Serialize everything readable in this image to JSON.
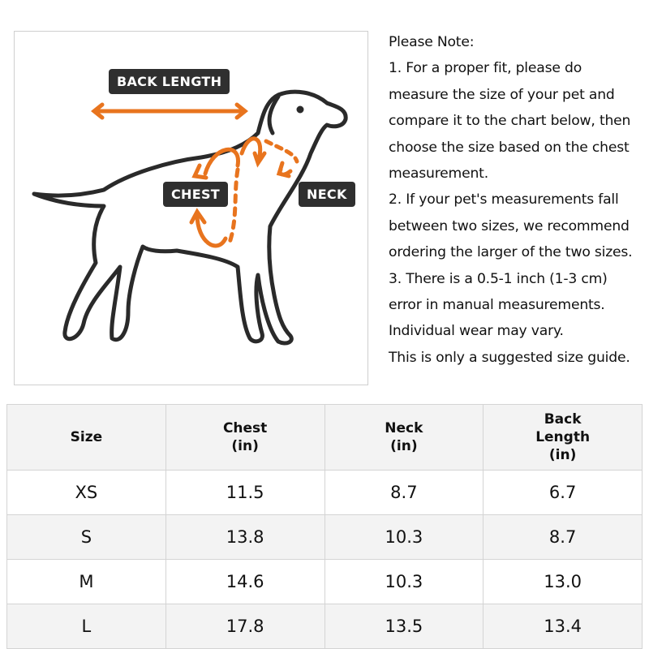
{
  "illustration": {
    "labels": {
      "back_length": "BACK LENGTH",
      "chest": "CHEST",
      "neck": "NECK"
    },
    "colors": {
      "arrow": "#e8741e",
      "tag": "#2f2f2f",
      "outline": "#2a2a2a"
    }
  },
  "notes": {
    "lines": [
      "Please Note:",
      "1. For a proper fit, please do",
      "measure the size of your pet and",
      "compare it to the chart below, then",
      "choose the size based on the chest",
      "measurement.",
      "2. If your pet's measurements fall",
      "between two sizes, we recommend",
      "ordering the larger of the two sizes.",
      "3. There is a 0.5-1 inch (1-3 cm)",
      "error in manual measurements.",
      "Individual wear may vary.",
      "This is only a suggested size guide."
    ]
  },
  "table": {
    "headers": [
      [
        "Size"
      ],
      [
        "Chest",
        "(in)"
      ],
      [
        "Neck",
        "(in)"
      ],
      [
        "Back",
        "Length",
        "(in)"
      ]
    ],
    "rows": [
      [
        "XS",
        "11.5",
        "8.7",
        "6.7"
      ],
      [
        "S",
        "13.8",
        "10.3",
        "8.7"
      ],
      [
        "M",
        "14.6",
        "10.3",
        "13.0"
      ],
      [
        "L",
        "17.8",
        "13.5",
        "13.4"
      ]
    ]
  }
}
